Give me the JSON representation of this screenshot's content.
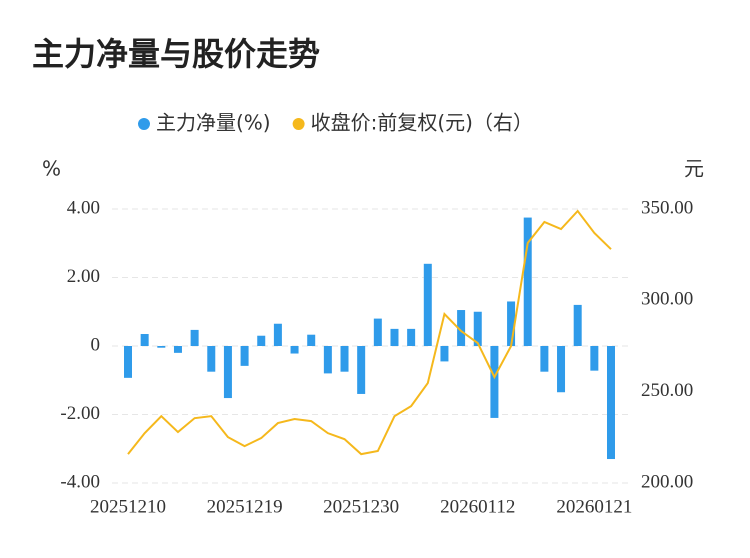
{
  "chart_data": {
    "type": "bar_line",
    "title": "主力净量与股价走势",
    "y_label": "%",
    "y2_label": "元",
    "categories": [
      "20251210",
      null,
      null,
      null,
      null,
      null,
      null,
      "20251219",
      null,
      null,
      null,
      null,
      null,
      null,
      "20251230",
      null,
      null,
      null,
      null,
      null,
      null,
      "20260112",
      null,
      null,
      null,
      null,
      null,
      null,
      "20260121",
      null
    ],
    "series": [
      {
        "name": "主力净量(%)",
        "color": "#2f9bea",
        "type": "bar",
        "values": [
          -0.93,
          0.35,
          -0.05,
          -0.2,
          0.47,
          -0.75,
          -1.52,
          -0.58,
          0.3,
          0.65,
          -0.22,
          0.33,
          -0.8,
          -0.75,
          -1.4,
          0.8,
          0.5,
          0.5,
          2.4,
          -0.45,
          1.05,
          1.0,
          -2.1,
          1.3,
          3.75,
          -0.75,
          -1.35,
          1.2,
          -0.72,
          -3.3
        ]
      },
      {
        "name": "收盘价:前复权(元)（右）",
        "color": "#f5b81c",
        "type": "line",
        "axis": "y2",
        "values": [
          215.8,
          227.3,
          236.6,
          227.9,
          235.5,
          236.6,
          225.1,
          220.2,
          224.6,
          232.8,
          235,
          233.9,
          227.3,
          224,
          215.8,
          217.5,
          236.6,
          242.1,
          254.7,
          292.5,
          283.2,
          276.6,
          258,
          275,
          331.4,
          342.9,
          339,
          348.9,
          336.9,
          328
        ]
      }
    ],
    "ylim": [
      -4,
      4
    ],
    "yticks": [
      {
        "value": 4,
        "label": "4.00"
      },
      {
        "value": 2,
        "label": "2.00"
      },
      0,
      {
        "value": -2,
        "label": "-2.00"
      },
      {
        "value": -4,
        "label": "-4.00"
      }
    ],
    "y2lim": [
      200,
      350
    ],
    "y2ticks": [
      {
        "value": 350,
        "label": "350.00"
      },
      {
        "value": 300,
        "label": "300.00"
      },
      {
        "value": 250,
        "label": "250.00"
      },
      {
        "value": 200,
        "label": "200.00"
      }
    ],
    "grid": true,
    "legend": "top"
  }
}
